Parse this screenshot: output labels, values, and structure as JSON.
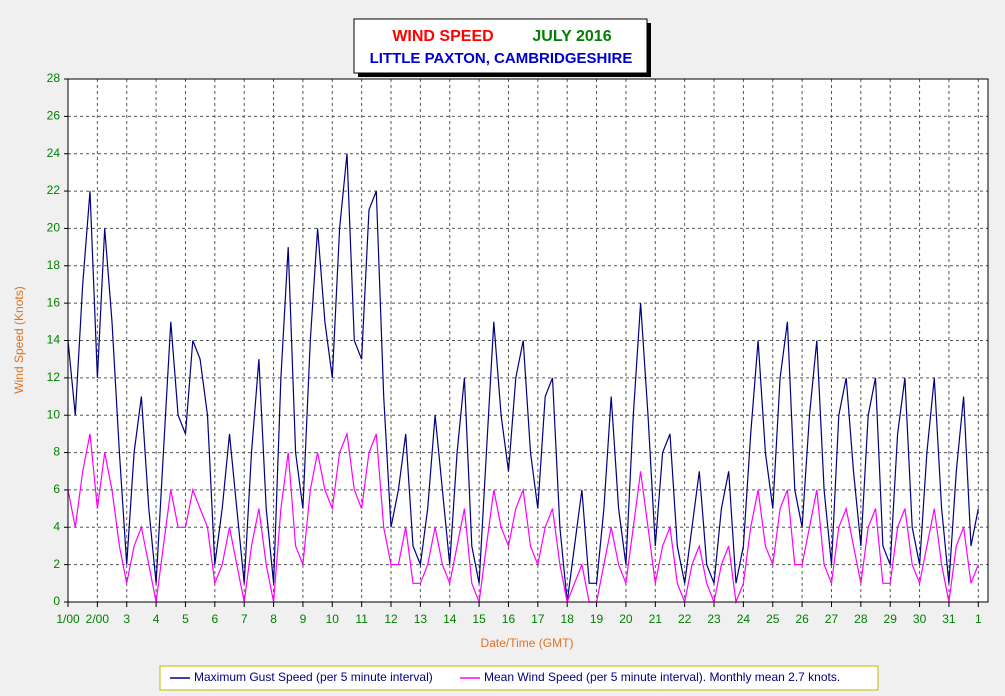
{
  "chart_data": {
    "type": "line",
    "title": [
      "WIND SPEED",
      "JULY 2016"
    ],
    "subtitle": "LITTLE PAXTON, CAMBRIDGESHIRE",
    "x_label": "Date/Time (GMT)",
    "y_label": "Wind Speed (Knots)",
    "x": [
      0,
      0.25,
      0.5,
      0.75,
      1,
      1.25,
      1.5,
      1.75,
      2,
      2.25,
      2.5,
      2.75,
      3,
      3.25,
      3.5,
      3.75,
      4,
      4.25,
      4.5,
      4.75,
      5,
      5.25,
      5.5,
      5.75,
      6,
      6.25,
      6.5,
      6.75,
      7,
      7.25,
      7.5,
      7.75,
      8,
      8.25,
      8.5,
      8.75,
      9,
      9.25,
      9.5,
      9.75,
      10,
      10.25,
      10.5,
      10.75,
      11,
      11.25,
      11.5,
      11.75,
      12,
      12.25,
      12.5,
      12.75,
      13,
      13.25,
      13.5,
      13.75,
      14,
      14.25,
      14.5,
      14.75,
      15,
      15.25,
      15.5,
      15.75,
      16,
      16.25,
      16.5,
      16.75,
      17,
      17.25,
      17.5,
      17.75,
      18,
      18.25,
      18.5,
      18.75,
      19,
      19.25,
      19.5,
      19.75,
      20,
      20.25,
      20.5,
      20.75,
      21,
      21.25,
      21.5,
      21.75,
      22,
      22.25,
      22.5,
      22.75,
      23,
      23.25,
      23.5,
      23.75,
      24,
      24.25,
      24.5,
      24.75,
      25,
      25.25,
      25.5,
      25.75,
      26,
      26.25,
      26.5,
      26.75,
      27,
      27.25,
      27.5,
      27.75,
      28,
      28.25,
      28.5,
      28.75,
      29,
      29.25,
      29.5,
      29.75,
      30,
      30.25,
      30.5,
      30.75,
      31
    ],
    "series": [
      {
        "name": "Maximum Gust Speed (per 5 minute interval)",
        "color": "#000080",
        "values": [
          14,
          10,
          17,
          22,
          12,
          20,
          15,
          8,
          2,
          8,
          11,
          5,
          1,
          8,
          15,
          10,
          9,
          14,
          13,
          10,
          2,
          5,
          9,
          5,
          1,
          8,
          13,
          5,
          1,
          12,
          19,
          8,
          5,
          14,
          20,
          15,
          12,
          20,
          24,
          14,
          13,
          21,
          22,
          11,
          4,
          6,
          9,
          3,
          2,
          5,
          10,
          6,
          2,
          8,
          12,
          3,
          1,
          8,
          15,
          10,
          7,
          12,
          14,
          8,
          5,
          11,
          12,
          4,
          0,
          3,
          6,
          1,
          1,
          5,
          11,
          5,
          2,
          10,
          16,
          10,
          3,
          8,
          9,
          3,
          1,
          4,
          7,
          2,
          1,
          5,
          7,
          1,
          3,
          9,
          14,
          8,
          5,
          12,
          15,
          6,
          4,
          10,
          14,
          6,
          2,
          10,
          12,
          7,
          3,
          10,
          12,
          3,
          2,
          9,
          12,
          4,
          2,
          8,
          12,
          5,
          1,
          7,
          11,
          3,
          5
        ]
      },
      {
        "name": "Mean Wind Speed (per 5 minute interval). Monthly mean 2.7 knots.",
        "color": "#ff00ff",
        "values": [
          6,
          4,
          7,
          9,
          5,
          8,
          6,
          3,
          1,
          3,
          4,
          2,
          0,
          3,
          6,
          4,
          4,
          6,
          5,
          4,
          1,
          2,
          4,
          2,
          0,
          3,
          5,
          2,
          0,
          5,
          8,
          3,
          2,
          6,
          8,
          6,
          5,
          8,
          9,
          6,
          5,
          8,
          9,
          4,
          2,
          2,
          4,
          1,
          1,
          2,
          4,
          2,
          1,
          3,
          5,
          1,
          0,
          3,
          6,
          4,
          3,
          5,
          6,
          3,
          2,
          4,
          5,
          2,
          0,
          1,
          2,
          0,
          0,
          2,
          4,
          2,
          1,
          4,
          7,
          4,
          1,
          3,
          4,
          1,
          0,
          2,
          3,
          1,
          0,
          2,
          3,
          0,
          1,
          4,
          6,
          3,
          2,
          5,
          6,
          2,
          2,
          4,
          6,
          2,
          1,
          4,
          5,
          3,
          1,
          4,
          5,
          1,
          1,
          4,
          5,
          2,
          1,
          3,
          5,
          2,
          0,
          3,
          4,
          1,
          2
        ]
      }
    ],
    "xlim": [
      0,
      31.33
    ],
    "xticks": [
      {
        "value": 0,
        "label": "1/00"
      },
      {
        "value": 1,
        "label": "2/00"
      },
      {
        "value": 2,
        "label": "3"
      },
      {
        "value": 3,
        "label": "4"
      },
      {
        "value": 4,
        "label": "5"
      },
      {
        "value": 5,
        "label": "6"
      },
      {
        "value": 6,
        "label": "7"
      },
      {
        "value": 7,
        "label": "8"
      },
      {
        "value": 8,
        "label": "9"
      },
      {
        "value": 9,
        "label": "10"
      },
      {
        "value": 10,
        "label": "11"
      },
      {
        "value": 11,
        "label": "12"
      },
      {
        "value": 12,
        "label": "13"
      },
      {
        "value": 13,
        "label": "14"
      },
      {
        "value": 14,
        "label": "15"
      },
      {
        "value": 15,
        "label": "16"
      },
      {
        "value": 16,
        "label": "17"
      },
      {
        "value": 17,
        "label": "18"
      },
      {
        "value": 18,
        "label": "19"
      },
      {
        "value": 19,
        "label": "20"
      },
      {
        "value": 20,
        "label": "21"
      },
      {
        "value": 21,
        "label": "22"
      },
      {
        "value": 22,
        "label": "23"
      },
      {
        "value": 23,
        "label": "24"
      },
      {
        "value": 24,
        "label": "25"
      },
      {
        "value": 25,
        "label": "26"
      },
      {
        "value": 26,
        "label": "27"
      },
      {
        "value": 27,
        "label": "28"
      },
      {
        "value": 28,
        "label": "29"
      },
      {
        "value": 29,
        "label": "30"
      },
      {
        "value": 30,
        "label": "31"
      },
      {
        "value": 31,
        "label": "1"
      }
    ],
    "ylim": [
      0,
      28
    ],
    "yticks": [
      0,
      2,
      4,
      6,
      8,
      10,
      12,
      14,
      16,
      18,
      20,
      22,
      24,
      26,
      28
    ],
    "grid": true
  }
}
